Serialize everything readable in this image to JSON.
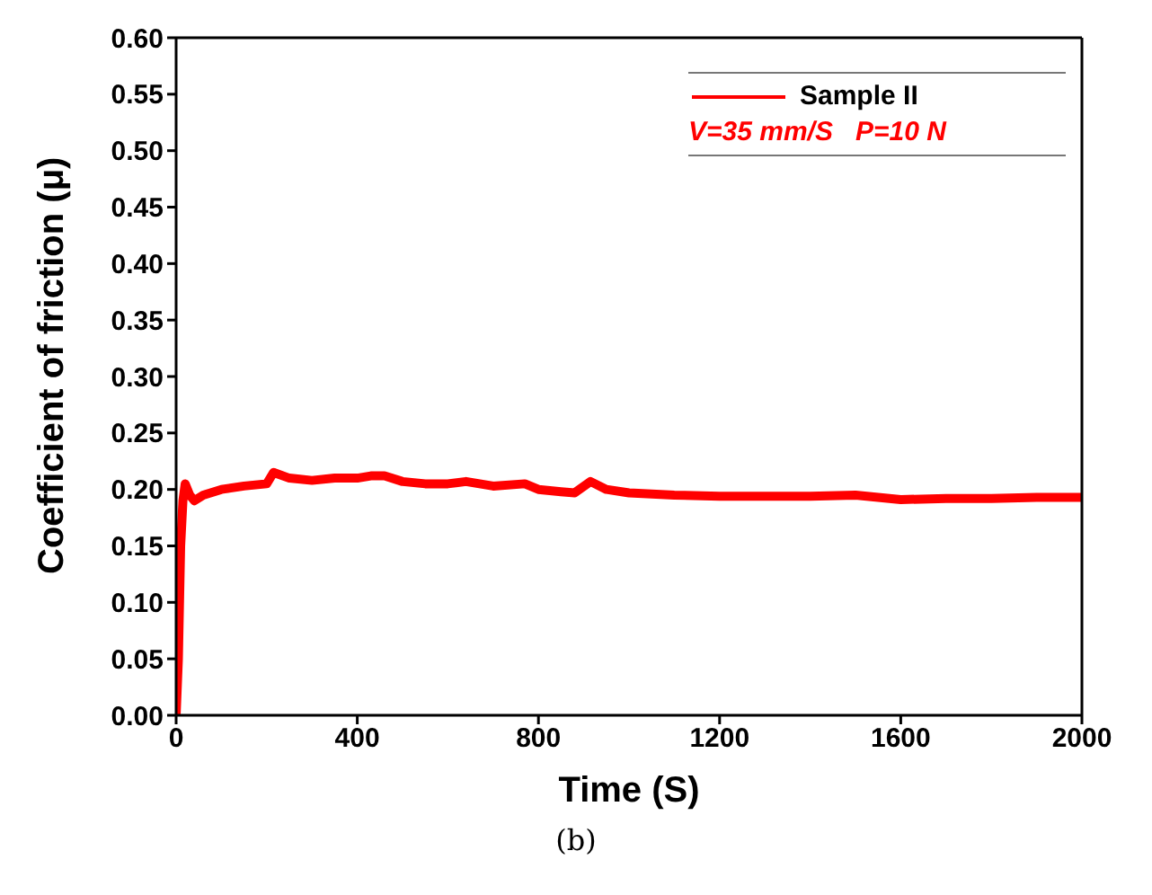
{
  "chart_data": {
    "type": "line",
    "xlabel": "Time (S)",
    "ylabel": "Coefficient of friction (μ)",
    "x": [
      0,
      5,
      10,
      15,
      20,
      30,
      40,
      60,
      100,
      150,
      200,
      215,
      250,
      300,
      350,
      400,
      430,
      460,
      500,
      550,
      600,
      640,
      700,
      770,
      800,
      850,
      880,
      915,
      950,
      1000,
      1100,
      1200,
      1300,
      1400,
      1500,
      1600,
      1700,
      1800,
      1900,
      2000
    ],
    "series": [
      {
        "name": "Sample II",
        "color": "#ff0000",
        "values": [
          0,
          0.05,
          0.15,
          0.19,
          0.205,
          0.195,
          0.19,
          0.195,
          0.2,
          0.203,
          0.205,
          0.215,
          0.21,
          0.208,
          0.21,
          0.21,
          0.212,
          0.212,
          0.207,
          0.205,
          0.205,
          0.207,
          0.203,
          0.205,
          0.2,
          0.198,
          0.197,
          0.207,
          0.2,
          0.197,
          0.195,
          0.194,
          0.194,
          0.194,
          0.195,
          0.191,
          0.192,
          0.192,
          0.193,
          0.193
        ]
      }
    ],
    "xlim": [
      0,
      2000
    ],
    "xticks": [
      0,
      400,
      800,
      1200,
      1600,
      2000
    ],
    "ylim": [
      0,
      0.6
    ],
    "yticks": [
      {
        "value": 0,
        "label": "0.00"
      },
      {
        "value": 0.05,
        "label": "0.05"
      },
      {
        "value": 0.1,
        "label": "0.10"
      },
      {
        "value": 0.15,
        "label": "0.15"
      },
      {
        "value": 0.2,
        "label": "0.20"
      },
      {
        "value": 0.25,
        "label": "0.25"
      },
      {
        "value": 0.3,
        "label": "0.30"
      },
      {
        "value": 0.35,
        "label": "0.35"
      },
      {
        "value": 0.4,
        "label": "0.40"
      },
      {
        "value": 0.45,
        "label": "0.45"
      },
      {
        "value": 0.5,
        "label": "0.50"
      },
      {
        "value": 0.55,
        "label": "0.55"
      },
      {
        "value": 0.6,
        "label": "0.60"
      }
    ],
    "annotations": [
      "V=35 mm/S   P=10 N",
      "(b)"
    ],
    "legend": "top right",
    "grid": false,
    "marker": "none",
    "line_style": "solid"
  }
}
